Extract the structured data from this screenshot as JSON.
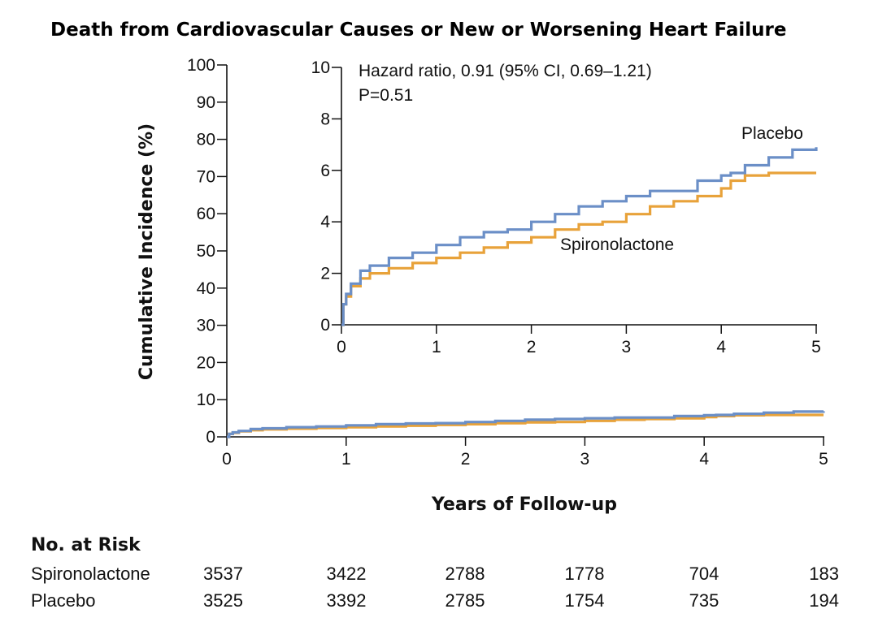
{
  "chart_data": [
    {
      "type": "line",
      "subtype": "kaplan-meier-cumulative-incidence",
      "panel": "main",
      "title": "Death from Cardiovascular Causes or New or Worsening Heart Failure",
      "xlabel": "Years of Follow-up",
      "ylabel": "Cumulative Incidence (%)",
      "xlim": [
        0,
        5
      ],
      "ylim": [
        0,
        100
      ],
      "xticks": [
        "0",
        "1",
        "2",
        "3",
        "4",
        "5"
      ],
      "yticks": [
        "0",
        "10",
        "20",
        "30",
        "40",
        "50",
        "60",
        "70",
        "80",
        "90",
        "100"
      ],
      "colors": {
        "placebo": "#6b8fc7",
        "spironolactone": "#e8a23a"
      },
      "series": [
        {
          "name": "Spironolactone",
          "x": [
            0,
            0.02,
            0.05,
            0.1,
            0.2,
            0.3,
            0.5,
            0.75,
            1.0,
            1.25,
            1.5,
            1.75,
            2.0,
            2.25,
            2.5,
            2.75,
            3.0,
            3.25,
            3.5,
            3.75,
            4.0,
            4.1,
            4.25,
            4.5,
            4.75,
            5.0
          ],
          "values": [
            0,
            0.8,
            1.1,
            1.5,
            1.8,
            2.0,
            2.2,
            2.4,
            2.6,
            2.8,
            3.0,
            3.2,
            3.4,
            3.7,
            3.9,
            4.0,
            4.3,
            4.6,
            4.8,
            5.0,
            5.3,
            5.6,
            5.8,
            5.9,
            5.9,
            5.9
          ]
        },
        {
          "name": "Placebo",
          "x": [
            0,
            0.02,
            0.05,
            0.1,
            0.2,
            0.3,
            0.5,
            0.75,
            1.0,
            1.25,
            1.5,
            1.75,
            2.0,
            2.25,
            2.5,
            2.75,
            3.0,
            3.25,
            3.5,
            3.75,
            4.0,
            4.1,
            4.25,
            4.5,
            4.75,
            5.0
          ],
          "values": [
            0,
            0.8,
            1.2,
            1.6,
            2.1,
            2.3,
            2.6,
            2.8,
            3.1,
            3.4,
            3.6,
            3.7,
            4.0,
            4.3,
            4.6,
            4.8,
            5.0,
            5.2,
            5.2,
            5.6,
            5.8,
            5.9,
            6.2,
            6.5,
            6.8,
            6.9
          ]
        }
      ]
    },
    {
      "type": "line",
      "panel": "inset",
      "xlim": [
        0,
        5
      ],
      "ylim": [
        0,
        10
      ],
      "xticks": [
        "0",
        "1",
        "2",
        "3",
        "4",
        "5"
      ],
      "yticks": [
        "0",
        "2",
        "4",
        "6",
        "8",
        "10"
      ],
      "annotations": {
        "hazard_ratio": "Hazard ratio, 0.91 (95% CI, 0.69–1.21)",
        "p_value": "P=0.51",
        "placebo_label": "Placebo",
        "spironolactone_label": "Spironolactone"
      },
      "series_ref": "main"
    }
  ],
  "risk_table": {
    "title": "No. at Risk",
    "rows": [
      {
        "label": "Spironolactone",
        "values": [
          "3537",
          "3422",
          "2788",
          "1778",
          "704",
          "183"
        ]
      },
      {
        "label": "Placebo",
        "values": [
          "3525",
          "3392",
          "2785",
          "1754",
          "735",
          "194"
        ]
      }
    ]
  }
}
